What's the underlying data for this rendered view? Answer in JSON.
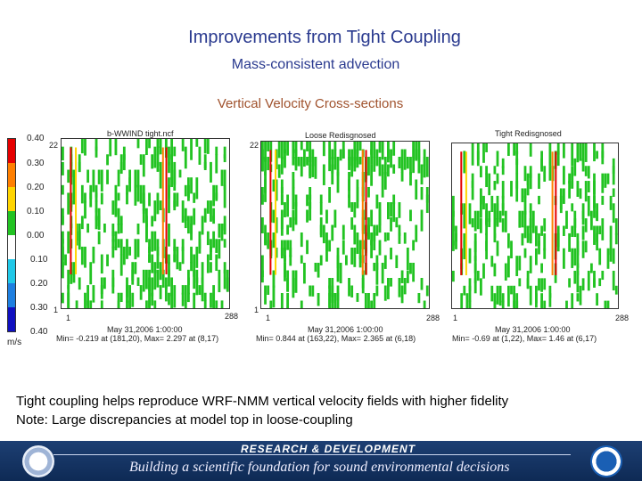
{
  "slide": {
    "title": "Improvements from Tight Coupling",
    "subtitle": "Mass-consistent advection",
    "section_heading": "Vertical Velocity Cross-sections",
    "notes": [
      "Tight coupling helps reproduce WRF-NMM vertical velocity fields with higher fidelity",
      "Note: Large discrepancies at model top in loose-coupling"
    ]
  },
  "colorbar": {
    "unit": "m/s",
    "labels": [
      "0.40",
      "0.30",
      "0.20",
      "0.10",
      "0.00",
      "0.10",
      "0.20",
      "0.30",
      "0.40"
    ],
    "colors": [
      "#e60000",
      "#ff7f00",
      "#ffd400",
      "#22c322",
      "#ffffff",
      "#20c8e8",
      "#1e7fe0",
      "#1e3fd0",
      "#1010c0"
    ]
  },
  "panels": [
    {
      "title": "b-WWIND tight.ncf",
      "y_top_label": "22",
      "y_bottom_label": "1",
      "x_left_label": "1",
      "x_right_label": "288",
      "date": "May 31,2006 1:00:00",
      "stats": "Min= -0.219 at (181,20), Max= 2.297 at (8,17)"
    },
    {
      "title": "Loose Redisgnosed",
      "y_top_label": "22",
      "y_bottom_label": "1",
      "x_left_label": "1",
      "x_right_label": "288",
      "date": "May 31,2006 1:00:00",
      "stats": "Min= 0.844 at (163,22), Max= 2.365 at (6,18)"
    },
    {
      "title": "Tight Redisgnosed",
      "y_top_label": "",
      "y_bottom_label": "",
      "x_left_label": "1",
      "x_right_label": "288",
      "date": "May 31,2006 1:00:00",
      "stats": "Min= -0.69 at (1,22), Max= 1.46 at (6,17)"
    }
  ],
  "footer": {
    "program": "RESEARCH & DEVELOPMENT",
    "tagline": "Building a scientific foundation for sound environmental decisions"
  }
}
